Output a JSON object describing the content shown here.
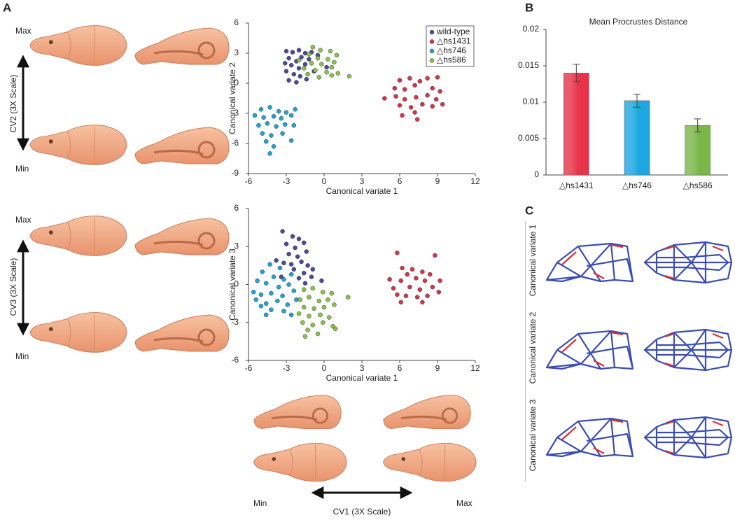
{
  "labels": {
    "panel_a": "A",
    "panel_b": "B",
    "panel_c": "C",
    "max_labels": [
      "Max",
      "Max",
      "Max"
    ],
    "min_labels": [
      "Min",
      "Min",
      "Min"
    ],
    "cv2_scale": "CV2 (3X Scale)",
    "cv3_scale": "CV3 (3X Scale)",
    "cv1_scale": "CV1 (3X Scale)",
    "c_rows": [
      "Canonical variate 1",
      "Canonical variate 2",
      "Canonical variate 3"
    ]
  },
  "chart_data": [
    {
      "type": "scatter",
      "xlabel": "Canonical variate 1",
      "ylabel": "Canonical variate 2",
      "xlim": [
        -6,
        12
      ],
      "ylim": [
        -9,
        6
      ],
      "xticks": [
        -6,
        -3,
        0,
        3,
        6,
        9,
        12
      ],
      "yticks": [
        -9,
        -6,
        -3,
        0,
        3,
        6
      ],
      "legend": "upper right",
      "series": [
        {
          "name": "wild-type",
          "color": "#4b4aa0",
          "x": [
            -3,
            -2.5,
            -2,
            -1.5,
            -1,
            -2.8,
            -2.2,
            -1.8,
            -1.2,
            -0.5,
            -2.6,
            -2,
            -1.5,
            -3,
            -2.4,
            -1.9,
            -2.8,
            -2.2,
            -1.4,
            -0.8,
            -3.1,
            0.2
          ],
          "values": [
            3.2,
            3.1,
            3.3,
            3.0,
            3.1,
            2.5,
            2.2,
            2.6,
            2.4,
            2.8,
            1.8,
            1.5,
            1.9,
            1.2,
            0.9,
            0.7,
            0.3,
            0.1,
            0.4,
            1.2,
            2.0,
            1.6
          ]
        },
        {
          "name": "△hs1431",
          "color": "#d8354a",
          "x": [
            6,
            6.8,
            7.6,
            8.2,
            9,
            5.6,
            6.4,
            7.2,
            8.6,
            9.2,
            4.8,
            5.7,
            6.4,
            7.3,
            8.2,
            8.9,
            6,
            6.9,
            7.8,
            8.6,
            9.4,
            7.2,
            7.4,
            6.2
          ],
          "values": [
            0.3,
            0.5,
            0.2,
            0.5,
            0.6,
            -0.5,
            -0.6,
            -0.2,
            -0.5,
            -0.8,
            -1.5,
            -1.3,
            -1.6,
            -1.4,
            -1.2,
            -1.6,
            -2.2,
            -2.4,
            -2.1,
            -2.3,
            -2.1,
            -2.9,
            -3.6,
            -3.2
          ]
        },
        {
          "name": "△hs746",
          "color": "#1aa7dc",
          "x": [
            -5,
            -4.3,
            -3.6,
            -3,
            -2.3,
            -5.5,
            -4.8,
            -4,
            -3.4,
            -2.6,
            -5.2,
            -4.5,
            -3.8,
            -3.1,
            -2.4,
            -4.9,
            -4.2,
            -3.3,
            -2.6,
            -4.6,
            -4,
            -4.3
          ],
          "values": [
            -2.6,
            -2.4,
            -2.8,
            -2.9,
            -2.6,
            -3.2,
            -3.4,
            -3.3,
            -3.5,
            -3.2,
            -4.2,
            -4.0,
            -4.3,
            -4.1,
            -4.2,
            -5.0,
            -5.2,
            -5.0,
            -5.7,
            -5.8,
            -6.3,
            -7.0
          ]
        },
        {
          "name": "△hs586",
          "color": "#8bc34a",
          "x": [
            -0.9,
            -0.3,
            0.5,
            1,
            -1.2,
            -0.5,
            0.3,
            0.8,
            -1,
            -0.2,
            0.6,
            -1.6,
            -0.7,
            0.2,
            1.1,
            -1.3,
            -0.4,
            2.0,
            0.6,
            -2
          ],
          "values": [
            3.6,
            3.3,
            3.2,
            2.8,
            2.9,
            2.5,
            2.4,
            2.1,
            2.0,
            1.9,
            1.6,
            1.5,
            1.3,
            1.1,
            1.0,
            0.9,
            0.6,
            0.7,
            0.8,
            2.3
          ]
        }
      ]
    },
    {
      "type": "scatter",
      "xlabel": "Canonical variate 1",
      "ylabel": "Canonical variate 3",
      "xlim": [
        -6,
        12
      ],
      "ylim": [
        -6,
        6
      ],
      "xticks": [
        -6,
        -3,
        0,
        3,
        6,
        9,
        12
      ],
      "yticks": [
        -6,
        -3,
        0,
        3,
        6
      ],
      "series": [
        {
          "name": "wild-type",
          "color": "#4b4aa0",
          "x": [
            -3.3,
            -2.5,
            -2,
            -1.6,
            -3,
            -2.3,
            -1.4,
            -2.8,
            -2.1,
            -1.8,
            -2.6,
            -3.2,
            -1.3,
            -0.9,
            -2.4,
            -1.6,
            -3.4,
            -1,
            -2,
            -0.2,
            -1.5,
            -3.8
          ],
          "values": [
            4.2,
            3.8,
            3.6,
            3.3,
            3.2,
            2.9,
            2.6,
            2.4,
            2.2,
            1.8,
            1.6,
            1.7,
            1.5,
            1.2,
            1.2,
            0.9,
            0.6,
            0.6,
            0.5,
            0.3,
            0.1,
            1.9
          ]
        },
        {
          "name": "△hs1431",
          "color": "#d8354a",
          "x": [
            5.8,
            8.8,
            6.2,
            7,
            7.8,
            6.6,
            8.4,
            5.2,
            6.1,
            7.3,
            8.0,
            9.2,
            5.5,
            6.8,
            7.6,
            8.6,
            5.8,
            6.5,
            7.4,
            8.2,
            6.1,
            7.8,
            9.1
          ],
          "values": [
            2.5,
            2.3,
            1.3,
            1.2,
            1.0,
            0.8,
            0.8,
            0.4,
            0.3,
            0.5,
            0.3,
            0.3,
            -0.3,
            -0.2,
            -0.4,
            -0.2,
            -0.8,
            -0.9,
            -1.0,
            -0.9,
            -1.4,
            -1.4,
            -0.6
          ]
        },
        {
          "name": "△hs746",
          "color": "#1aa7dc",
          "x": [
            -4.3,
            -3.5,
            -4.9,
            -4,
            -3.2,
            -2.6,
            -5.3,
            -4.6,
            -3.6,
            -2.8,
            -5.6,
            -5,
            -4.2,
            -3.3,
            -2.4,
            -5.4,
            -4.6,
            -3.7,
            -2.9,
            -4.2,
            -5.0,
            -3.2,
            -2.6,
            -4.6,
            -2.2
          ],
          "values": [
            1.6,
            1.3,
            1.0,
            0.6,
            0.4,
            0.8,
            0.3,
            0.1,
            -0.2,
            0.0,
            -0.6,
            -0.8,
            -0.7,
            -0.9,
            -0.5,
            -1.2,
            -1.5,
            -1.3,
            -1.6,
            -2.0,
            -1.7,
            -2.1,
            -2.4,
            -2.4,
            -1.2
          ]
        },
        {
          "name": "△hs586",
          "color": "#8bc34a",
          "x": [
            -1.6,
            -0.9,
            -0.1,
            0.6,
            -1.9,
            -1.2,
            -0.4,
            0.3,
            1.9,
            -1.6,
            -0.8,
            0,
            0.8,
            -2,
            -1.2,
            -0.3,
            0.4,
            -1.7,
            -0.9,
            -0.1,
            0.7,
            -1.3,
            -0.5,
            0.9,
            -1.5
          ],
          "values": [
            -0.4,
            -0.3,
            -0.6,
            -0.7,
            -1.2,
            -1.0,
            -1.3,
            -1.2,
            -1.0,
            -1.8,
            -1.9,
            -1.8,
            -1.6,
            -2.3,
            -2.5,
            -2.4,
            -2.6,
            -3.0,
            -3.2,
            -3.0,
            -3.3,
            -3.6,
            -3.9,
            -3.5,
            -4.1
          ]
        }
      ]
    },
    {
      "type": "bar",
      "title": "Mean Procrustes Distance",
      "categories": [
        "△hs1431",
        "△hs746",
        "△hs586"
      ],
      "values": [
        0.014,
        0.0102,
        0.0068
      ],
      "errors": [
        0.0012,
        0.0009,
        0.0009
      ],
      "colors": [
        "#e8344a",
        "#1ca7e0",
        "#7ab648"
      ],
      "ylim": [
        0,
        0.02
      ],
      "yticks": [
        0,
        0.005,
        0.01,
        0.015,
        0.02
      ]
    }
  ]
}
